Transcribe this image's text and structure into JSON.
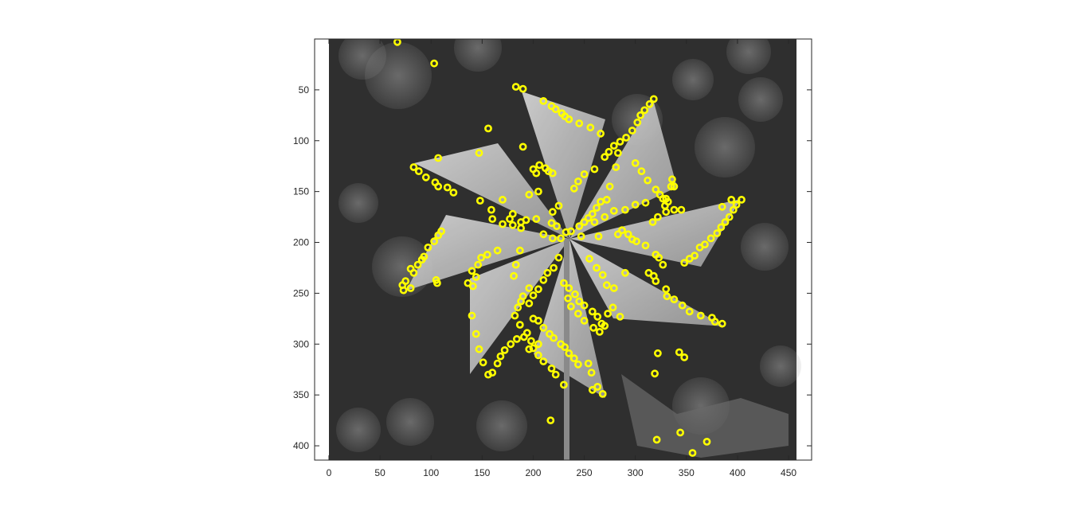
{
  "chart_data": {
    "type": "scatter",
    "title": "",
    "xlabel": "",
    "ylabel": "",
    "xlim": [
      0,
      458
    ],
    "ylim": [
      412,
      0
    ],
    "y_direction": "reverse",
    "grid": false,
    "legend": "none",
    "background": "grayscale photograph of a pinwheel",
    "marker": "circle",
    "colors": {
      "marker": "#FFFF00",
      "axis": "#262626"
    },
    "x_ticks": [
      "0",
      "50",
      "100",
      "150",
      "200",
      "250",
      "300",
      "350",
      "400",
      "450"
    ],
    "y_ticks": [
      "50",
      "100",
      "150",
      "200",
      "250",
      "300",
      "350",
      "400"
    ],
    "x_tick_values": [
      0,
      50,
      100,
      150,
      200,
      250,
      300,
      350,
      400,
      450
    ],
    "y_tick_values": [
      50,
      100,
      150,
      200,
      250,
      300,
      350,
      400
    ],
    "series": [
      {
        "values": [
          [
            67,
            3
          ],
          [
            103,
            24
          ],
          [
            183,
            47
          ],
          [
            190,
            49
          ],
          [
            210,
            61
          ],
          [
            218,
            66
          ],
          [
            222,
            69
          ],
          [
            228,
            73
          ],
          [
            231,
            76
          ],
          [
            235,
            79
          ],
          [
            245,
            83
          ],
          [
            256,
            87
          ],
          [
            266,
            93
          ],
          [
            318,
            59
          ],
          [
            314,
            64
          ],
          [
            309,
            70
          ],
          [
            305,
            75
          ],
          [
            302,
            82
          ],
          [
            297,
            90
          ],
          [
            291,
            97
          ],
          [
            285,
            101
          ],
          [
            279,
            105
          ],
          [
            274,
            111
          ],
          [
            270,
            116
          ],
          [
            260,
            128
          ],
          [
            250,
            133
          ],
          [
            244,
            140
          ],
          [
            240,
            147
          ],
          [
            156,
            88
          ],
          [
            147,
            112
          ],
          [
            107,
            117
          ],
          [
            83,
            126
          ],
          [
            88,
            130
          ],
          [
            95,
            136
          ],
          [
            104,
            141
          ],
          [
            107,
            145
          ],
          [
            116,
            146
          ],
          [
            122,
            151
          ],
          [
            190,
            106
          ],
          [
            200,
            128
          ],
          [
            206,
            124
          ],
          [
            212,
            127
          ],
          [
            215,
            130
          ],
          [
            219,
            132
          ],
          [
            203,
            132
          ],
          [
            205,
            150
          ],
          [
            196,
            153
          ],
          [
            300,
            122
          ],
          [
            306,
            130
          ],
          [
            312,
            139
          ],
          [
            320,
            148
          ],
          [
            324,
            153
          ],
          [
            330,
            157
          ],
          [
            332,
            160
          ],
          [
            335,
            145
          ],
          [
            336,
            138
          ],
          [
            329,
            164
          ],
          [
            283,
            112
          ],
          [
            281,
            126
          ],
          [
            275,
            145
          ],
          [
            272,
            158
          ],
          [
            266,
            160
          ],
          [
            262,
            166
          ],
          [
            258,
            172
          ],
          [
            254,
            176
          ],
          [
            250,
            180
          ],
          [
            245,
            184
          ],
          [
            148,
            159
          ],
          [
            170,
            158
          ],
          [
            159,
            168
          ],
          [
            160,
            177
          ],
          [
            170,
            182
          ],
          [
            180,
            183
          ],
          [
            188,
            180
          ],
          [
            193,
            178
          ],
          [
            203,
            177
          ],
          [
            188,
            186
          ],
          [
            180,
            172
          ],
          [
            177,
            177
          ],
          [
            110,
            189
          ],
          [
            107,
            193
          ],
          [
            103,
            199
          ],
          [
            97,
            205
          ],
          [
            93,
            214
          ],
          [
            91,
            217
          ],
          [
            87,
            222
          ],
          [
            80,
            226
          ],
          [
            83,
            230
          ],
          [
            75,
            238
          ],
          [
            72,
            242
          ],
          [
            80,
            245
          ],
          [
            73,
            247
          ],
          [
            105,
            237
          ],
          [
            106,
            240
          ],
          [
            219,
            170
          ],
          [
            225,
            164
          ],
          [
            218,
            181
          ],
          [
            223,
            184
          ],
          [
            210,
            192
          ],
          [
            219,
            196
          ],
          [
            227,
            196
          ],
          [
            232,
            190
          ],
          [
            237,
            189
          ],
          [
            247,
            194
          ],
          [
            264,
            194
          ],
          [
            260,
            180
          ],
          [
            270,
            175
          ],
          [
            279,
            169
          ],
          [
            290,
            168
          ],
          [
            300,
            163
          ],
          [
            310,
            161
          ],
          [
            327,
            157
          ],
          [
            338,
            145
          ],
          [
            283,
            192
          ],
          [
            287,
            188
          ],
          [
            293,
            192
          ],
          [
            297,
            197
          ],
          [
            301,
            199
          ],
          [
            310,
            203
          ],
          [
            317,
            180
          ],
          [
            322,
            175
          ],
          [
            330,
            170
          ],
          [
            338,
            168
          ],
          [
            345,
            168
          ],
          [
            394,
            158
          ],
          [
            404,
            158
          ],
          [
            399,
            163
          ],
          [
            396,
            168
          ],
          [
            392,
            175
          ],
          [
            388,
            180
          ],
          [
            384,
            185
          ],
          [
            380,
            191
          ],
          [
            374,
            196
          ],
          [
            368,
            202
          ],
          [
            363,
            205
          ],
          [
            358,
            213
          ],
          [
            353,
            216
          ],
          [
            348,
            220
          ],
          [
            385,
            165
          ],
          [
            165,
            208
          ],
          [
            155,
            212
          ],
          [
            149,
            215
          ],
          [
            146,
            222
          ],
          [
            140,
            228
          ],
          [
            144,
            234
          ],
          [
            136,
            240
          ],
          [
            141,
            243
          ],
          [
            187,
            208
          ],
          [
            183,
            222
          ],
          [
            181,
            233
          ],
          [
            196,
            245
          ],
          [
            190,
            253
          ],
          [
            188,
            258
          ],
          [
            185,
            264
          ],
          [
            182,
            272
          ],
          [
            187,
            281
          ],
          [
            194,
            289
          ],
          [
            198,
            297
          ],
          [
            205,
            300
          ],
          [
            225,
            215
          ],
          [
            220,
            225
          ],
          [
            214,
            230
          ],
          [
            210,
            237
          ],
          [
            205,
            246
          ],
          [
            200,
            252
          ],
          [
            196,
            260
          ],
          [
            230,
            240
          ],
          [
            235,
            245
          ],
          [
            241,
            251
          ],
          [
            245,
            258
          ],
          [
            250,
            262
          ],
          [
            258,
            268
          ],
          [
            263,
            273
          ],
          [
            267,
            280
          ],
          [
            255,
            216
          ],
          [
            262,
            225
          ],
          [
            268,
            232
          ],
          [
            272,
            242
          ],
          [
            279,
            245
          ],
          [
            290,
            230
          ],
          [
            313,
            230
          ],
          [
            318,
            233
          ],
          [
            320,
            212
          ],
          [
            323,
            215
          ],
          [
            327,
            222
          ],
          [
            320,
            238
          ],
          [
            330,
            246
          ],
          [
            331,
            253
          ],
          [
            338,
            256
          ],
          [
            346,
            262
          ],
          [
            353,
            268
          ],
          [
            364,
            272
          ],
          [
            375,
            274
          ],
          [
            378,
            278
          ],
          [
            385,
            280
          ],
          [
            140,
            272
          ],
          [
            144,
            290
          ],
          [
            147,
            305
          ],
          [
            151,
            318
          ],
          [
            156,
            330
          ],
          [
            160,
            328
          ],
          [
            165,
            319
          ],
          [
            168,
            312
          ],
          [
            172,
            306
          ],
          [
            178,
            300
          ],
          [
            184,
            295
          ],
          [
            191,
            293
          ],
          [
            196,
            305
          ],
          [
            200,
            275
          ],
          [
            205,
            277
          ],
          [
            210,
            284
          ],
          [
            216,
            290
          ],
          [
            220,
            294
          ],
          [
            227,
            300
          ],
          [
            231,
            303
          ],
          [
            235,
            309
          ],
          [
            240,
            314
          ],
          [
            244,
            320
          ],
          [
            254,
            319
          ],
          [
            257,
            328
          ],
          [
            268,
            349
          ],
          [
            263,
            342
          ],
          [
            258,
            345
          ],
          [
            230,
            340
          ],
          [
            222,
            330
          ],
          [
            218,
            324
          ],
          [
            210,
            317
          ],
          [
            205,
            311
          ],
          [
            200,
            304
          ],
          [
            234,
            255
          ],
          [
            237,
            263
          ],
          [
            244,
            270
          ],
          [
            250,
            277
          ],
          [
            259,
            284
          ],
          [
            265,
            288
          ],
          [
            270,
            282
          ],
          [
            273,
            270
          ],
          [
            278,
            264
          ],
          [
            285,
            273
          ],
          [
            217,
            375
          ],
          [
            322,
            309
          ],
          [
            319,
            329
          ],
          [
            343,
            308
          ],
          [
            348,
            313
          ],
          [
            321,
            394
          ],
          [
            344,
            387
          ],
          [
            356,
            407
          ],
          [
            370,
            396
          ]
        ]
      }
    ]
  }
}
